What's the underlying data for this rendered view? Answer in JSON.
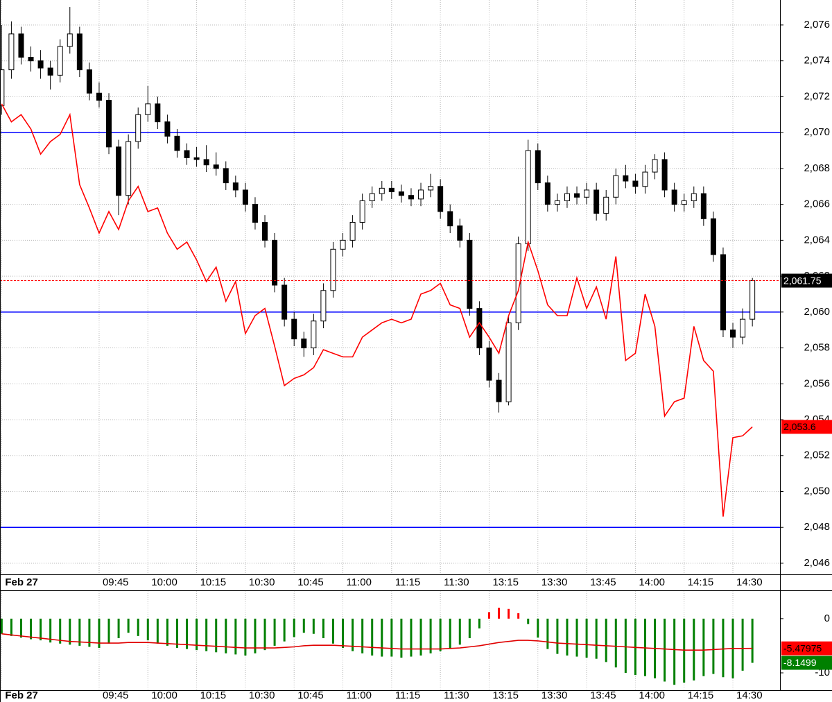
{
  "chart_data": [
    {
      "type": "candlestick",
      "grid": true,
      "xlim": [
        -0.5,
        239.5
      ],
      "ylim": [
        2045.38,
        2077.39
      ],
      "xticks": [
        {
          "value": 0,
          "label": "Feb 27"
        },
        {
          "value": 30,
          "label": "09:45"
        },
        {
          "value": 45,
          "label": "10:00"
        },
        {
          "value": 60,
          "label": "10:15"
        },
        {
          "value": 75,
          "label": "10:30"
        },
        {
          "value": 90,
          "label": "10:45"
        },
        {
          "value": 105,
          "label": "11:00"
        },
        {
          "value": 120,
          "label": "11:15"
        },
        {
          "value": 135,
          "label": "11:30"
        },
        {
          "value": 150,
          "label": "13:15"
        },
        {
          "value": 165,
          "label": "13:30"
        },
        {
          "value": 180,
          "label": "13:45"
        },
        {
          "value": 195,
          "label": "14:00"
        },
        {
          "value": 210,
          "label": "14:15"
        },
        {
          "value": 225,
          "label": "14:30"
        }
      ],
      "yticks": [
        {
          "value": 2046,
          "label": "2,046"
        },
        {
          "value": 2048,
          "label": "2,048"
        },
        {
          "value": 2050,
          "label": "2,050"
        },
        {
          "value": 2052,
          "label": "2,052"
        },
        {
          "value": 2054,
          "label": "2,054"
        },
        {
          "value": 2056,
          "label": "2,056"
        },
        {
          "value": 2058,
          "label": "2,058"
        },
        {
          "value": 2060,
          "label": "2,060"
        },
        {
          "value": 2062,
          "label": "2,062"
        },
        {
          "value": 2064,
          "label": "2,064"
        },
        {
          "value": 2066,
          "label": "2,066"
        },
        {
          "value": 2068,
          "label": "2,068"
        },
        {
          "value": 2070,
          "label": "2,070"
        },
        {
          "value": 2072,
          "label": "2,072"
        },
        {
          "value": 2074,
          "label": "2,074"
        },
        {
          "value": 2076,
          "label": "2,076"
        }
      ],
      "x": [
        0,
        3,
        6,
        9,
        12,
        15,
        18,
        21,
        24,
        27,
        30,
        33,
        36,
        39,
        42,
        45,
        48,
        51,
        54,
        57,
        60,
        63,
        66,
        69,
        72,
        75,
        78,
        81,
        84,
        87,
        90,
        93,
        96,
        99,
        102,
        105,
        108,
        111,
        114,
        117,
        120,
        123,
        126,
        129,
        132,
        135,
        138,
        141,
        144,
        147,
        150,
        153,
        156,
        159,
        162,
        165,
        168,
        171,
        174,
        177,
        180,
        183,
        186,
        189,
        192,
        195,
        198,
        201,
        204,
        207,
        210,
        213,
        216,
        219,
        222,
        225,
        228,
        231
      ],
      "candles": [
        [
          2071.5,
          2076.0,
          2071.0,
          2073.5
        ],
        [
          2073.5,
          2076.2,
          2073.0,
          2075.5
        ],
        [
          2075.5,
          2075.9,
          2073.8,
          2074.2
        ],
        [
          2074.2,
          2074.8,
          2073.4,
          2074.0
        ],
        [
          2074.0,
          2074.6,
          2073.0,
          2073.6
        ],
        [
          2073.6,
          2074.0,
          2072.4,
          2073.2
        ],
        [
          2073.2,
          2075.2,
          2072.8,
          2074.8
        ],
        [
          2074.8,
          2077.0,
          2074.4,
          2075.5
        ],
        [
          2075.5,
          2075.9,
          2073.1,
          2073.5
        ],
        [
          2073.5,
          2073.9,
          2071.8,
          2072.2
        ],
        [
          2072.2,
          2072.8,
          2071.4,
          2071.8
        ],
        [
          2071.8,
          2072.2,
          2068.8,
          2069.2
        ],
        [
          2069.2,
          2069.6,
          2065.4,
          2066.5
        ],
        [
          2066.5,
          2069.9,
          2066.0,
          2069.5
        ],
        [
          2069.5,
          2071.4,
          2069.1,
          2071.0
        ],
        [
          2071.0,
          2072.6,
          2070.6,
          2071.6
        ],
        [
          2071.6,
          2072.0,
          2070.2,
          2070.6
        ],
        [
          2070.6,
          2071.0,
          2069.4,
          2069.8
        ],
        [
          2069.8,
          2070.2,
          2068.6,
          2069.0
        ],
        [
          2069.0,
          2069.4,
          2068.2,
          2068.6
        ],
        [
          2068.6,
          2069.2,
          2068.1,
          2068.5
        ],
        [
          2068.5,
          2069.3,
          2067.8,
          2068.2
        ],
        [
          2068.2,
          2068.9,
          2067.6,
          2068.0
        ],
        [
          2068.0,
          2068.4,
          2066.8,
          2067.2
        ],
        [
          2067.2,
          2067.6,
          2066.4,
          2066.8
        ],
        [
          2066.8,
          2067.2,
          2065.6,
          2066.0
        ],
        [
          2066.0,
          2066.4,
          2064.6,
          2065.0
        ],
        [
          2065.0,
          2065.4,
          2063.6,
          2064.0
        ],
        [
          2064.0,
          2064.4,
          2061.1,
          2061.5
        ],
        [
          2061.5,
          2061.9,
          2059.2,
          2059.6
        ],
        [
          2059.6,
          2060.0,
          2058.1,
          2058.5
        ],
        [
          2058.5,
          2058.9,
          2057.5,
          2058.0
        ],
        [
          2058.0,
          2059.9,
          2057.6,
          2059.5
        ],
        [
          2059.5,
          2061.6,
          2059.1,
          2061.2
        ],
        [
          2061.2,
          2063.9,
          2060.8,
          2063.5
        ],
        [
          2063.5,
          2064.4,
          2063.1,
          2064.0
        ],
        [
          2064.0,
          2065.4,
          2063.6,
          2065.0
        ],
        [
          2065.0,
          2066.6,
          2064.6,
          2066.2
        ],
        [
          2066.2,
          2067.0,
          2065.8,
          2066.6
        ],
        [
          2066.6,
          2067.3,
          2066.2,
          2066.9
        ],
        [
          2066.9,
          2067.3,
          2066.3,
          2066.7
        ],
        [
          2066.7,
          2067.1,
          2066.1,
          2066.5
        ],
        [
          2066.5,
          2066.9,
          2065.9,
          2066.3
        ],
        [
          2066.3,
          2067.2,
          2065.9,
          2066.8
        ],
        [
          2066.8,
          2067.7,
          2066.4,
          2067.0
        ],
        [
          2067.0,
          2067.4,
          2065.2,
          2065.6
        ],
        [
          2065.6,
          2066.0,
          2064.4,
          2064.8
        ],
        [
          2064.8,
          2065.2,
          2063.6,
          2064.0
        ],
        [
          2064.0,
          2064.4,
          2059.8,
          2060.2
        ],
        [
          2060.2,
          2060.6,
          2057.6,
          2058.0
        ],
        [
          2058.0,
          2058.4,
          2055.8,
          2056.2
        ],
        [
          2056.2,
          2056.6,
          2054.4,
          2055.0
        ],
        [
          2055.0,
          2059.8,
          2054.8,
          2059.4
        ],
        [
          2059.4,
          2064.2,
          2059.0,
          2063.8
        ],
        [
          2063.8,
          2069.6,
          2063.4,
          2069.0
        ],
        [
          2069.0,
          2069.4,
          2066.8,
          2067.2
        ],
        [
          2067.2,
          2067.6,
          2065.6,
          2066.0
        ],
        [
          2066.0,
          2066.6,
          2065.6,
          2066.2
        ],
        [
          2066.2,
          2067.0,
          2065.8,
          2066.6
        ],
        [
          2066.6,
          2067.0,
          2066.0,
          2066.4
        ],
        [
          2066.4,
          2067.2,
          2066.0,
          2066.8
        ],
        [
          2066.8,
          2067.2,
          2065.1,
          2065.5
        ],
        [
          2065.5,
          2066.8,
          2065.1,
          2066.4
        ],
        [
          2066.4,
          2068.0,
          2066.0,
          2067.6
        ],
        [
          2067.6,
          2068.2,
          2066.9,
          2067.3
        ],
        [
          2067.3,
          2067.7,
          2066.6,
          2067.0
        ],
        [
          2067.0,
          2068.2,
          2066.6,
          2067.8
        ],
        [
          2067.8,
          2068.8,
          2067.4,
          2068.5
        ],
        [
          2068.5,
          2068.9,
          2066.4,
          2066.8
        ],
        [
          2066.8,
          2067.2,
          2065.6,
          2066.0
        ],
        [
          2066.0,
          2066.6,
          2065.6,
          2066.2
        ],
        [
          2066.2,
          2067.0,
          2065.8,
          2066.6
        ],
        [
          2066.6,
          2067.0,
          2064.8,
          2065.2
        ],
        [
          2065.2,
          2065.6,
          2062.8,
          2063.2
        ],
        [
          2063.2,
          2063.6,
          2058.6,
          2059.0
        ],
        [
          2059.0,
          2059.4,
          2058.0,
          2058.6
        ],
        [
          2058.6,
          2060.2,
          2058.2,
          2059.6
        ],
        [
          2059.6,
          2061.9,
          2059.2,
          2061.75
        ]
      ],
      "up_color": "#ffffff",
      "down_color": "#000000",
      "series": [
        {
          "color": "#ff0000",
          "values": [
            2071.6,
            2070.6,
            2071.0,
            2070.2,
            2068.8,
            2069.5,
            2069.9,
            2071.0,
            2067.1,
            2065.8,
            2064.4,
            2065.6,
            2064.6,
            2066.2,
            2067.0,
            2065.6,
            2065.8,
            2064.4,
            2063.5,
            2063.9,
            2062.9,
            2061.7,
            2062.5,
            2060.6,
            2061.7,
            2058.8,
            2059.8,
            2060.2,
            2058.1,
            2055.9,
            2056.3,
            2056.5,
            2056.9,
            2057.9,
            2057.7,
            2057.5,
            2057.5,
            2058.6,
            2059.0,
            2059.4,
            2059.6,
            2059.4,
            2059.6,
            2061.0,
            2061.2,
            2061.6,
            2060.4,
            2060.2,
            2058.6,
            2059.4,
            2058.6,
            2057.7,
            2059.8,
            2061.2,
            2063.9,
            2062.3,
            2060.4,
            2059.8,
            2059.8,
            2061.9,
            2060.2,
            2061.4,
            2059.6,
            2063.1,
            2057.3,
            2057.7,
            2061.0,
            2059.2,
            2054.2,
            2055.0,
            2055.2,
            2059.2,
            2057.3,
            2056.7,
            2048.6,
            2053.0,
            2053.1,
            2053.6
          ]
        }
      ],
      "hlines": [
        2070,
        2060,
        2048
      ],
      "hline_color": "#0000ff",
      "price_tags": [
        {
          "value": 2061.75,
          "label": "2,061.75",
          "color": "#000000",
          "text_color": "#ffffff",
          "guide_line": true
        },
        {
          "value": 2053.6,
          "label": "2,053.6",
          "color": "#ff0000",
          "text_color": "#000000"
        }
      ]
    },
    {
      "type": "bar",
      "grid": false,
      "xlim": [
        -0.5,
        239.5
      ],
      "ylim": [
        -13.2,
        5.1
      ],
      "xticks": [
        {
          "value": 0,
          "label": "Feb 27"
        },
        {
          "value": 30,
          "label": "09:45"
        },
        {
          "value": 45,
          "label": "10:00"
        },
        {
          "value": 60,
          "label": "10:15"
        },
        {
          "value": 75,
          "label": "10:30"
        },
        {
          "value": 90,
          "label": "10:45"
        },
        {
          "value": 105,
          "label": "11:00"
        },
        {
          "value": 120,
          "label": "11:15"
        },
        {
          "value": 135,
          "label": "11:30"
        },
        {
          "value": 150,
          "label": "13:15"
        },
        {
          "value": 165,
          "label": "13:30"
        },
        {
          "value": 180,
          "label": "13:45"
        },
        {
          "value": 195,
          "label": "14:00"
        },
        {
          "value": 210,
          "label": "14:15"
        },
        {
          "value": 225,
          "label": "14:30"
        }
      ],
      "yticks": [
        0,
        -10
      ],
      "x": [
        0,
        3,
        6,
        9,
        12,
        15,
        18,
        21,
        24,
        27,
        30,
        33,
        36,
        39,
        42,
        45,
        48,
        51,
        54,
        57,
        60,
        63,
        66,
        69,
        72,
        75,
        78,
        81,
        84,
        87,
        90,
        93,
        96,
        99,
        102,
        105,
        108,
        111,
        114,
        117,
        120,
        123,
        126,
        129,
        132,
        135,
        138,
        141,
        144,
        147,
        150,
        153,
        156,
        159,
        162,
        165,
        168,
        171,
        174,
        177,
        180,
        183,
        186,
        189,
        192,
        195,
        198,
        201,
        204,
        207,
        210,
        213,
        216,
        219,
        222,
        225,
        228,
        231
      ],
      "values": [
        -2.8,
        -3.2,
        -3.5,
        -3.8,
        -4.0,
        -4.4,
        -4.6,
        -4.8,
        -5.0,
        -5.2,
        -5.4,
        -4.6,
        -3.6,
        -2.6,
        -3.2,
        -4.0,
        -4.6,
        -5.0,
        -5.4,
        -5.6,
        -5.8,
        -6.0,
        -6.2,
        -6.4,
        -6.6,
        -6.8,
        -6.4,
        -5.8,
        -5.0,
        -4.2,
        -3.4,
        -2.6,
        -2.8,
        -3.6,
        -4.6,
        -5.4,
        -6.0,
        -6.4,
        -6.8,
        -7.0,
        -7.0,
        -7.2,
        -7.0,
        -6.8,
        -6.4,
        -6.0,
        -5.6,
        -4.8,
        -3.6,
        -1.8,
        1.2,
        2.0,
        1.8,
        1.0,
        -1.0,
        -3.5,
        -5.6,
        -6.5,
        -6.8,
        -7.0,
        -7.2,
        -7.4,
        -8.0,
        -9.0,
        -10.0,
        -10.4,
        -10.6,
        -11.0,
        -11.6,
        -12.2,
        -11.8,
        -11.4,
        -10.6,
        -10.2,
        -10.8,
        -11.0,
        -9.6,
        -8.1499
      ],
      "pos_color": "#ff0000",
      "neg_color": "#008000",
      "series": [
        {
          "color": "#e00000",
          "values": [
            -2.8,
            -3.0,
            -3.2,
            -3.4,
            -3.6,
            -3.8,
            -4.0,
            -4.2,
            -4.3,
            -4.4,
            -4.5,
            -4.5,
            -4.5,
            -4.4,
            -4.4,
            -4.4,
            -4.5,
            -4.6,
            -4.7,
            -4.8,
            -4.9,
            -5.0,
            -5.1,
            -5.2,
            -5.3,
            -5.4,
            -5.4,
            -5.4,
            -5.4,
            -5.3,
            -5.2,
            -5.0,
            -4.9,
            -4.9,
            -4.9,
            -5.0,
            -5.1,
            -5.2,
            -5.3,
            -5.4,
            -5.5,
            -5.6,
            -5.6,
            -5.6,
            -5.6,
            -5.6,
            -5.5,
            -5.4,
            -5.2,
            -5.0,
            -4.7,
            -4.4,
            -4.2,
            -4.0,
            -4.0,
            -4.1,
            -4.3,
            -4.5,
            -4.6,
            -4.7,
            -4.8,
            -4.9,
            -5.0,
            -5.1,
            -5.2,
            -5.3,
            -5.4,
            -5.5,
            -5.6,
            -5.7,
            -5.8,
            -5.8,
            -5.8,
            -5.7,
            -5.6,
            -5.5,
            -5.5,
            -5.47975
          ]
        }
      ],
      "price_tags": [
        {
          "value": -5.47975,
          "label": "-5.47975",
          "color": "#ff0000",
          "text_color": "#000000"
        },
        {
          "value": -8.1499,
          "label": "-8.1499",
          "color": "#008000",
          "text_color": "#ffffff"
        }
      ]
    }
  ]
}
